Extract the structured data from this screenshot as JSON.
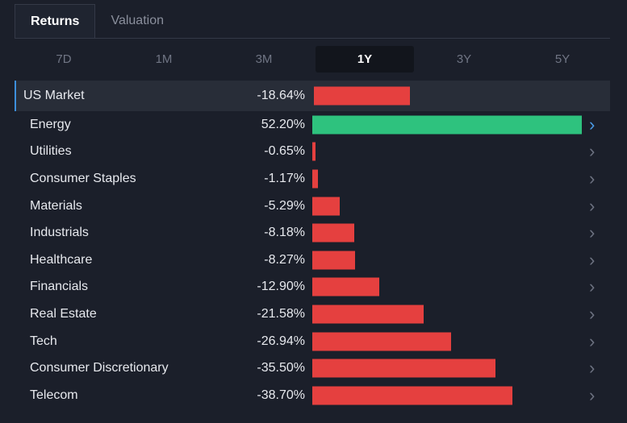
{
  "tabs": [
    {
      "label": "Returns",
      "active": true
    },
    {
      "label": "Valuation",
      "active": false
    }
  ],
  "periods": [
    {
      "label": "7D",
      "active": false
    },
    {
      "label": "1M",
      "active": false
    },
    {
      "label": "3M",
      "active": false
    },
    {
      "label": "1Y",
      "active": true
    },
    {
      "label": "3Y",
      "active": false
    },
    {
      "label": "5Y",
      "active": false
    }
  ],
  "colors": {
    "positive": "#2ec27e",
    "negative": "#e5403f",
    "accent": "#3d8fdc"
  },
  "market": {
    "name": "US Market",
    "pct_label": "-18.64%",
    "value": -18.64
  },
  "sectors": [
    {
      "name": "Energy",
      "pct_label": "52.20%",
      "value": 52.2,
      "selected": true
    },
    {
      "name": "Utilities",
      "pct_label": "-0.65%",
      "value": -0.65
    },
    {
      "name": "Consumer Staples",
      "pct_label": "-1.17%",
      "value": -1.17
    },
    {
      "name": "Materials",
      "pct_label": "-5.29%",
      "value": -5.29
    },
    {
      "name": "Industrials",
      "pct_label": "-8.18%",
      "value": -8.18
    },
    {
      "name": "Healthcare",
      "pct_label": "-8.27%",
      "value": -8.27
    },
    {
      "name": "Financials",
      "pct_label": "-12.90%",
      "value": -12.9
    },
    {
      "name": "Real Estate",
      "pct_label": "-21.58%",
      "value": -21.58
    },
    {
      "name": "Tech",
      "pct_label": "-26.94%",
      "value": -26.94
    },
    {
      "name": "Consumer Discretionary",
      "pct_label": "-35.50%",
      "value": -35.5
    },
    {
      "name": "Telecom",
      "pct_label": "-38.70%",
      "value": -38.7
    }
  ],
  "icons": {
    "row_chevron": "chevron-right-icon"
  }
}
